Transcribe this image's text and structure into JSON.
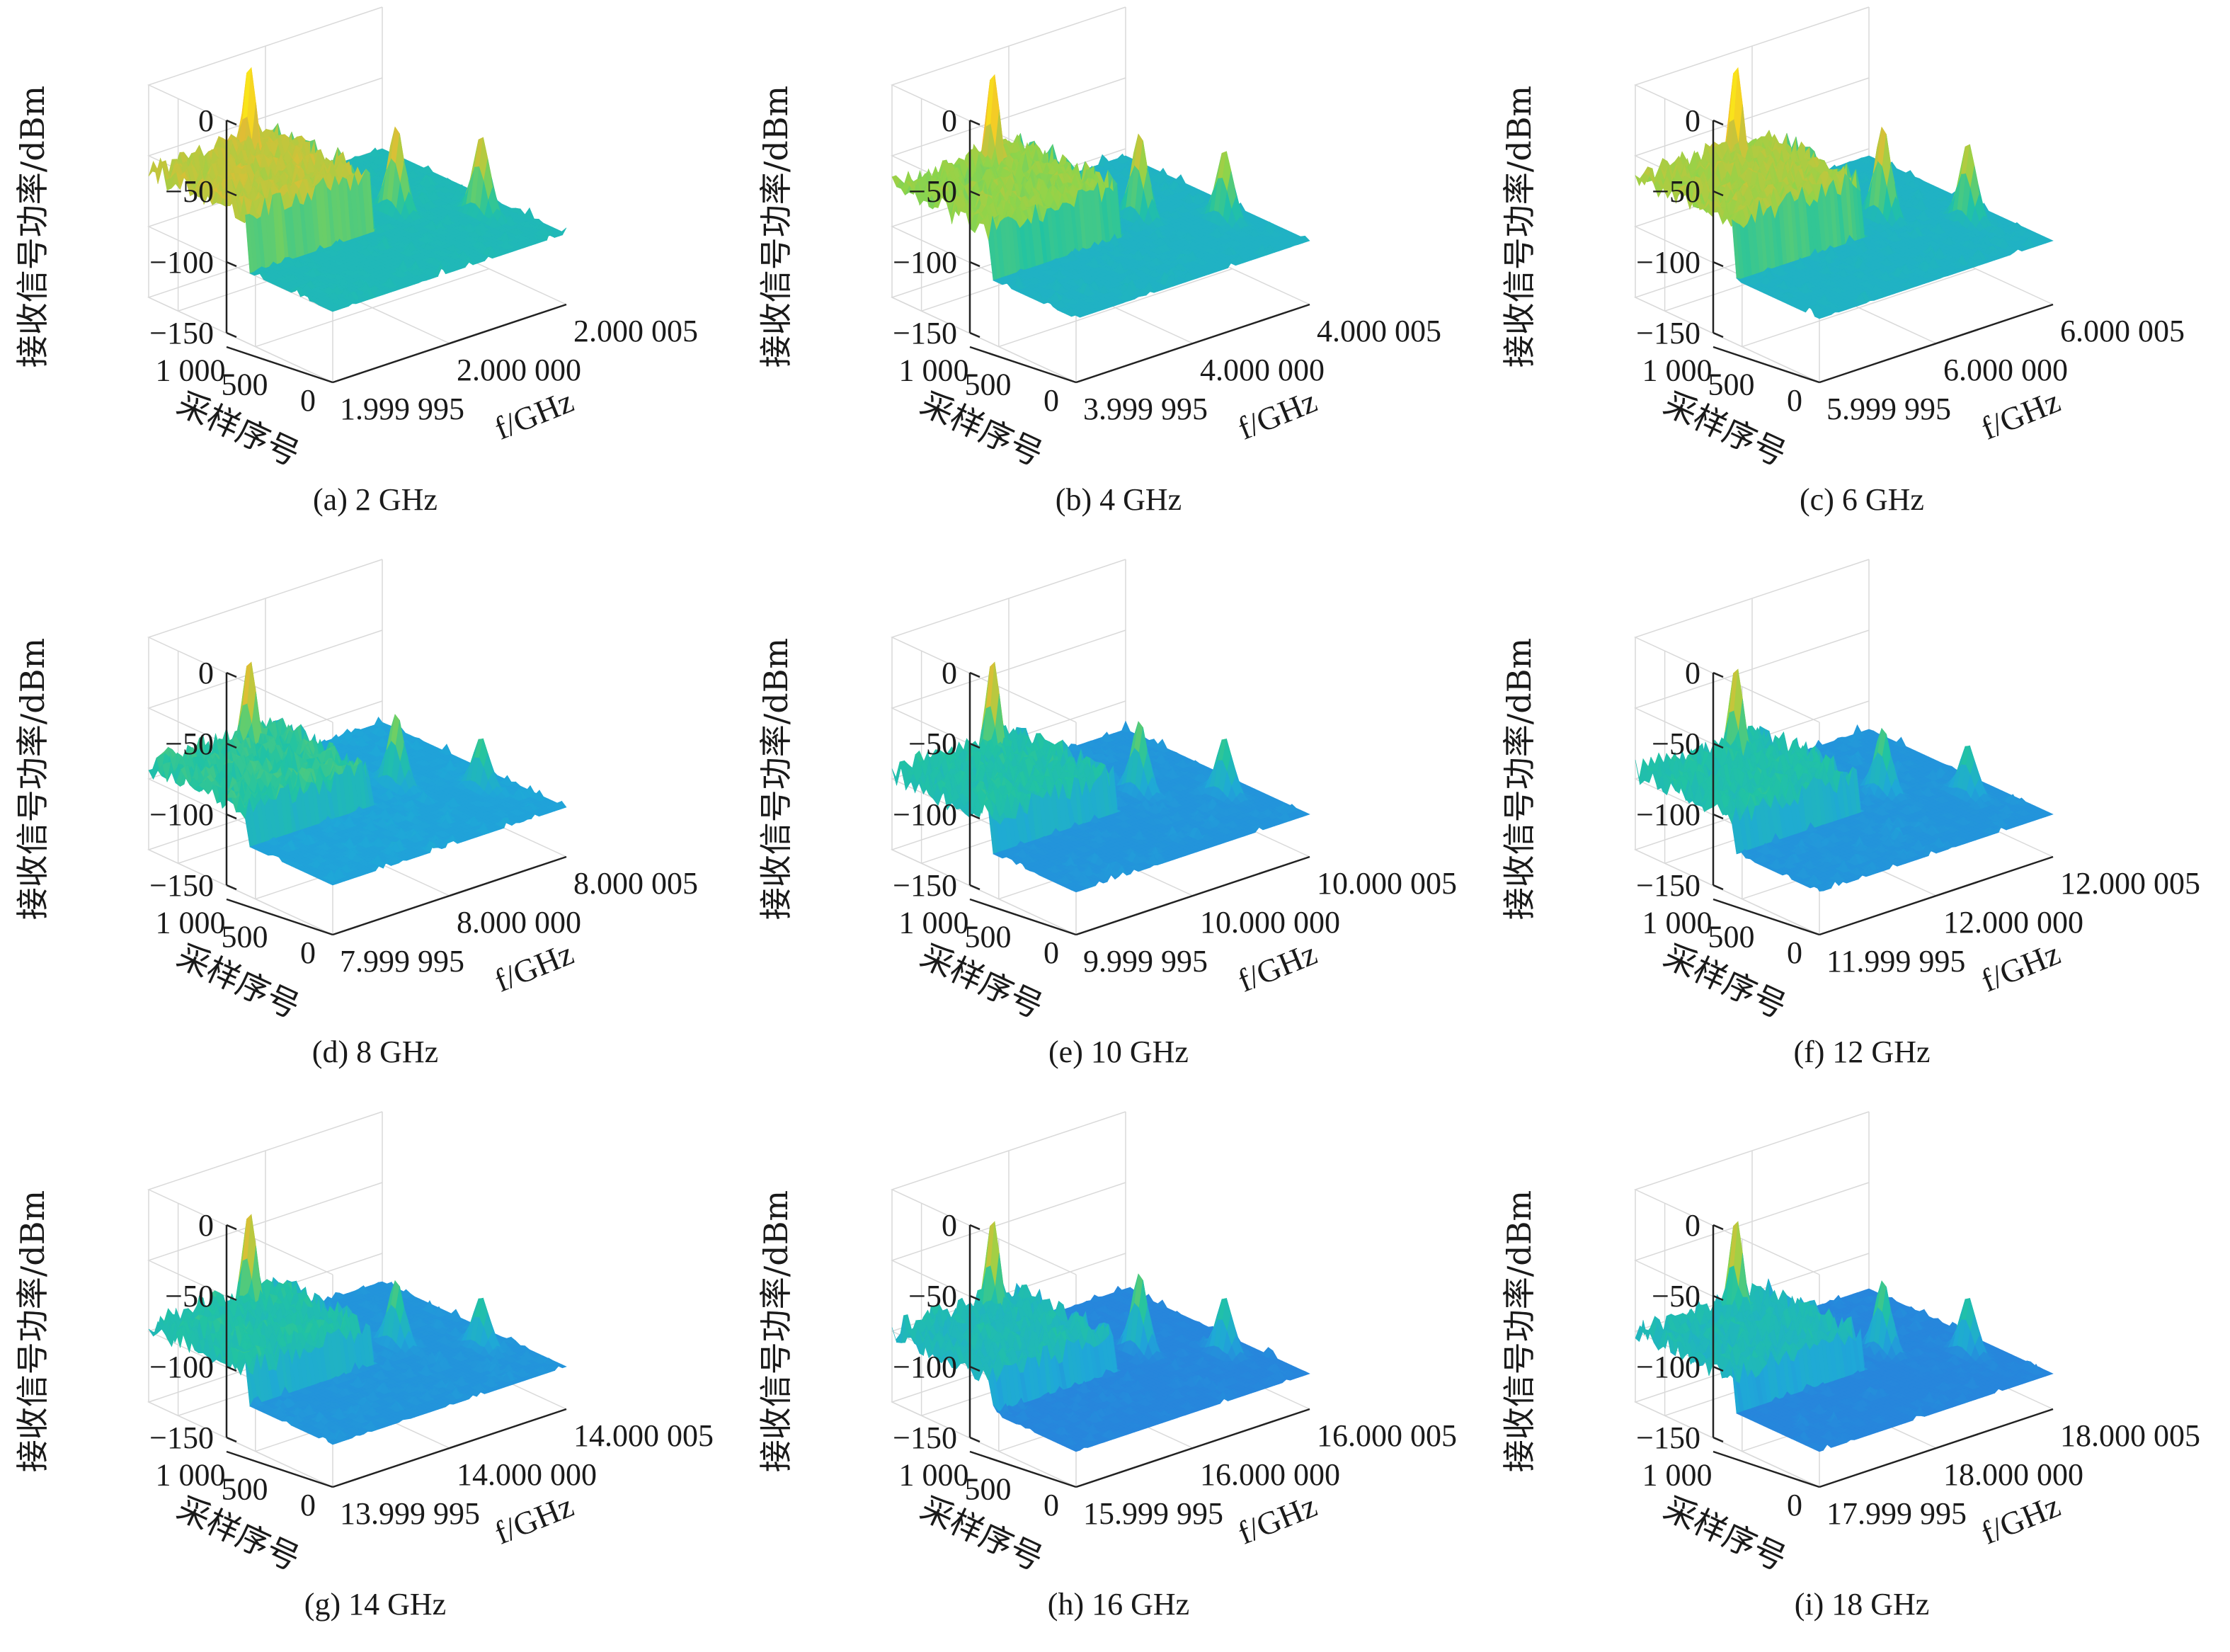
{
  "figure": {
    "colormap": [
      "#3e26a8",
      "#2d6ae0",
      "#1fa8d8",
      "#21c3a3",
      "#8fd44a",
      "#f0b930",
      "#f9e41a"
    ]
  },
  "chart_data": [
    {
      "type": "surface",
      "caption": "(a) 2 GHz",
      "zlabel": "接收信号功率/dBm",
      "ylabel": "采样序号",
      "xlabel": "f/GHz",
      "zticks": [
        "0",
        "−50",
        "−100",
        "−150"
      ],
      "zlim": [
        -150,
        0
      ],
      "yticks": [
        "0",
        "500",
        "1 000"
      ],
      "ylim": [
        0,
        1200
      ],
      "xticks": [
        "1.999 995",
        "2.000 000",
        "2.000 005"
      ],
      "xlim": [
        1.999995,
        2.000005
      ],
      "noise_floor": -100,
      "shelf": -60,
      "peaks": [
        {
          "x": 1.999999,
          "y": 1150,
          "z": -5
        },
        {
          "x": 2.000002,
          "y": 650,
          "z": -40
        },
        {
          "x": 2.000004,
          "y": 400,
          "z": -45
        }
      ]
    },
    {
      "type": "surface",
      "caption": "(b) 4 GHz",
      "zlabel": "接收信号功率/dBm",
      "ylabel": "采样序号",
      "xlabel": "f/GHz",
      "zticks": [
        "0",
        "−50",
        "−100",
        "−150"
      ],
      "zlim": [
        -150,
        0
      ],
      "yticks": [
        "0",
        "500",
        "1 000"
      ],
      "ylim": [
        0,
        1200
      ],
      "xticks": [
        "3.999 995",
        "4.000 000",
        "4.000 005"
      ],
      "xlim": [
        3.999995,
        4.000005
      ],
      "noise_floor": -105,
      "shelf": -70,
      "peaks": [
        {
          "x": 3.999999,
          "y": 1150,
          "z": -10
        },
        {
          "x": 4.000002,
          "y": 650,
          "z": -45
        },
        {
          "x": 4.000004,
          "y": 400,
          "z": -55
        }
      ]
    },
    {
      "type": "surface",
      "caption": "(c) 6 GHz",
      "zlabel": "接收信号功率/dBm",
      "ylabel": "采样序号",
      "xlabel": "f/GHz",
      "zticks": [
        "0",
        "−50",
        "−100",
        "−150"
      ],
      "zlim": [
        -150,
        0
      ],
      "yticks": [
        "0",
        "500",
        "1 000"
      ],
      "ylim": [
        0,
        1200
      ],
      "xticks": [
        "5.999 995",
        "6.000 000",
        "6.000 005"
      ],
      "xlim": [
        5.999995,
        6.000005
      ],
      "noise_floor": -105,
      "shelf": -65,
      "peaks": [
        {
          "x": 5.999999,
          "y": 1150,
          "z": -5
        },
        {
          "x": 6.000002,
          "y": 650,
          "z": -40
        },
        {
          "x": 6.000004,
          "y": 400,
          "z": -50
        }
      ]
    },
    {
      "type": "surface",
      "caption": "(d) 8 GHz",
      "zlabel": "接收信号功率/dBm",
      "ylabel": "采样序号",
      "xlabel": "f/GHz",
      "zticks": [
        "0",
        "−50",
        "−100",
        "−150"
      ],
      "zlim": [
        -150,
        0
      ],
      "yticks": [
        "0",
        "500",
        "1 000"
      ],
      "ylim": [
        0,
        1200
      ],
      "xticks": [
        "7.999 995",
        "8.000 000",
        "8.000 005"
      ],
      "xlim": [
        7.999995,
        8.000005
      ],
      "noise_floor": -115,
      "shelf": -90,
      "peaks": [
        {
          "x": 7.999999,
          "y": 1150,
          "z": -35
        },
        {
          "x": 8.000002,
          "y": 650,
          "z": -65
        },
        {
          "x": 8.000004,
          "y": 400,
          "z": -80
        }
      ]
    },
    {
      "type": "surface",
      "caption": "(e) 10 GHz",
      "zlabel": "接收信号功率/dBm",
      "ylabel": "采样序号",
      "xlabel": "f/GHz",
      "zticks": [
        "0",
        "−50",
        "−100",
        "−150"
      ],
      "zlim": [
        -150,
        0
      ],
      "yticks": [
        "0",
        "500",
        "1 000"
      ],
      "ylim": [
        0,
        1200
      ],
      "xticks": [
        "9.999 995",
        "10.000 000",
        "10.000 005"
      ],
      "xlim": [
        9.999995,
        10.000005
      ],
      "noise_floor": -120,
      "shelf": -95,
      "peaks": [
        {
          "x": 9.999999,
          "y": 1150,
          "z": -35
        },
        {
          "x": 10.000002,
          "y": 650,
          "z": -70
        },
        {
          "x": 10.000004,
          "y": 400,
          "z": -80
        }
      ]
    },
    {
      "type": "surface",
      "caption": "(f) 12 GHz",
      "zlabel": "接收信号功率/dBm",
      "ylabel": "采样序号",
      "xlabel": "f/GHz",
      "zticks": [
        "0",
        "−50",
        "−100",
        "−150"
      ],
      "zlim": [
        -150,
        0
      ],
      "yticks": [
        "0",
        "500",
        "1 000"
      ],
      "ylim": [
        0,
        1200
      ],
      "xticks": [
        "11.999 995",
        "12.000 000",
        "12.000 005"
      ],
      "xlim": [
        11.999995,
        12.000005
      ],
      "noise_floor": -120,
      "shelf": -95,
      "peaks": [
        {
          "x": 11.999999,
          "y": 1150,
          "z": -40
        },
        {
          "x": 12.000002,
          "y": 650,
          "z": -75
        },
        {
          "x": 12.000004,
          "y": 400,
          "z": -85
        }
      ]
    },
    {
      "type": "surface",
      "caption": "(g) 14 GHz",
      "zlabel": "接收信号功率/dBm",
      "ylabel": "采样序号",
      "xlabel": "f/GHz",
      "zticks": [
        "0",
        "−50",
        "−100",
        "−150"
      ],
      "zlim": [
        -150,
        0
      ],
      "yticks": [
        "0",
        "500",
        "1 000"
      ],
      "ylim": [
        0,
        1200
      ],
      "xticks": [
        "13.999 995",
        "14.000 000",
        "14.000 005"
      ],
      "xlim": [
        13.999995,
        14.000005
      ],
      "noise_floor": -120,
      "shelf": -95,
      "peaks": [
        {
          "x": 13.999999,
          "y": 1150,
          "z": -35
        },
        {
          "x": 14.000002,
          "y": 650,
          "z": -75
        },
        {
          "x": 14.000004,
          "y": 400,
          "z": -85
        }
      ]
    },
    {
      "type": "surface",
      "caption": "(h) 16 GHz",
      "zlabel": "接收信号功率/dBm",
      "ylabel": "采样序号",
      "xlabel": "f/GHz",
      "zticks": [
        "0",
        "−50",
        "−100",
        "−150"
      ],
      "zlim": [
        -150,
        0
      ],
      "yticks": [
        "0",
        "500",
        "1 000"
      ],
      "ylim": [
        0,
        1200
      ],
      "xticks": [
        "15.999 995",
        "16.000 000",
        "16.000 005"
      ],
      "xlim": [
        15.999995,
        16.000005
      ],
      "noise_floor": -125,
      "shelf": -100,
      "peaks": [
        {
          "x": 15.999999,
          "y": 1150,
          "z": -40
        },
        {
          "x": 16.000002,
          "y": 650,
          "z": -70
        },
        {
          "x": 16.000004,
          "y": 400,
          "z": -85
        }
      ]
    },
    {
      "type": "surface",
      "caption": "(i) 18 GHz",
      "zlabel": "接收信号功率/dBm",
      "ylabel": "采样序号",
      "xlabel": "f/GHz",
      "zticks": [
        "0",
        "−50",
        "−100",
        "−150"
      ],
      "zlim": [
        -150,
        0
      ],
      "yticks": [
        "0",
        "1 000"
      ],
      "ylim": [
        0,
        1200
      ],
      "xticks": [
        "17.999 995",
        "18.000 000",
        "18.000 005"
      ],
      "xlim": [
        17.999995,
        18.000005
      ],
      "noise_floor": -125,
      "shelf": -100,
      "peaks": [
        {
          "x": 17.999999,
          "y": 1150,
          "z": -40
        },
        {
          "x": 18.000002,
          "y": 650,
          "z": -75
        },
        {
          "x": 18.000004,
          "y": 400,
          "z": -85
        }
      ]
    }
  ]
}
